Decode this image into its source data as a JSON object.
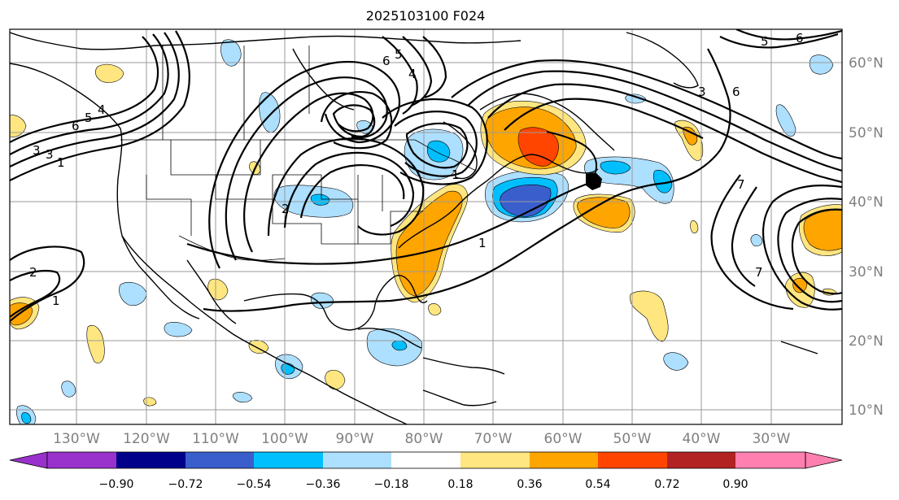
{
  "title": "2025103100 F024",
  "lon_labels": [
    "130°W",
    "120°W",
    "110°W",
    "100°W",
    "90°W",
    "80°W",
    "70°W",
    "60°W",
    "50°W",
    "40°W",
    "30°W"
  ],
  "lat_labels": [
    "60°N",
    "50°N",
    "40°N",
    "30°N",
    "20°N",
    "10°N"
  ],
  "colorbar": {
    "tick_labels": [
      "−0.90",
      "−0.72",
      "−0.54",
      "−0.36",
      "−0.18",
      "0.18",
      "0.36",
      "0.54",
      "0.72",
      "0.90"
    ],
    "colors": [
      "#9932cc",
      "#00008b",
      "#3a5fcd",
      "#00bfff",
      "#addfff",
      "#ffffff",
      "#ffe680",
      "#ffa500",
      "#ff4500",
      "#b22222",
      "#ff80b0"
    ]
  },
  "contour_labels": [
    "6",
    "5",
    "4",
    "6",
    "5",
    "4",
    "3",
    "3",
    "2",
    "1",
    "1",
    "1",
    "2",
    "1",
    "3",
    "5",
    "6",
    "6",
    "7",
    "7"
  ],
  "colors": {
    "neg_light": "#addfff",
    "neg_mid": "#00bfff",
    "neg_dark": "#3a5fcd",
    "pos_light": "#ffe680",
    "pos_mid": "#ffa500",
    "pos_dark": "#ff4500"
  }
}
